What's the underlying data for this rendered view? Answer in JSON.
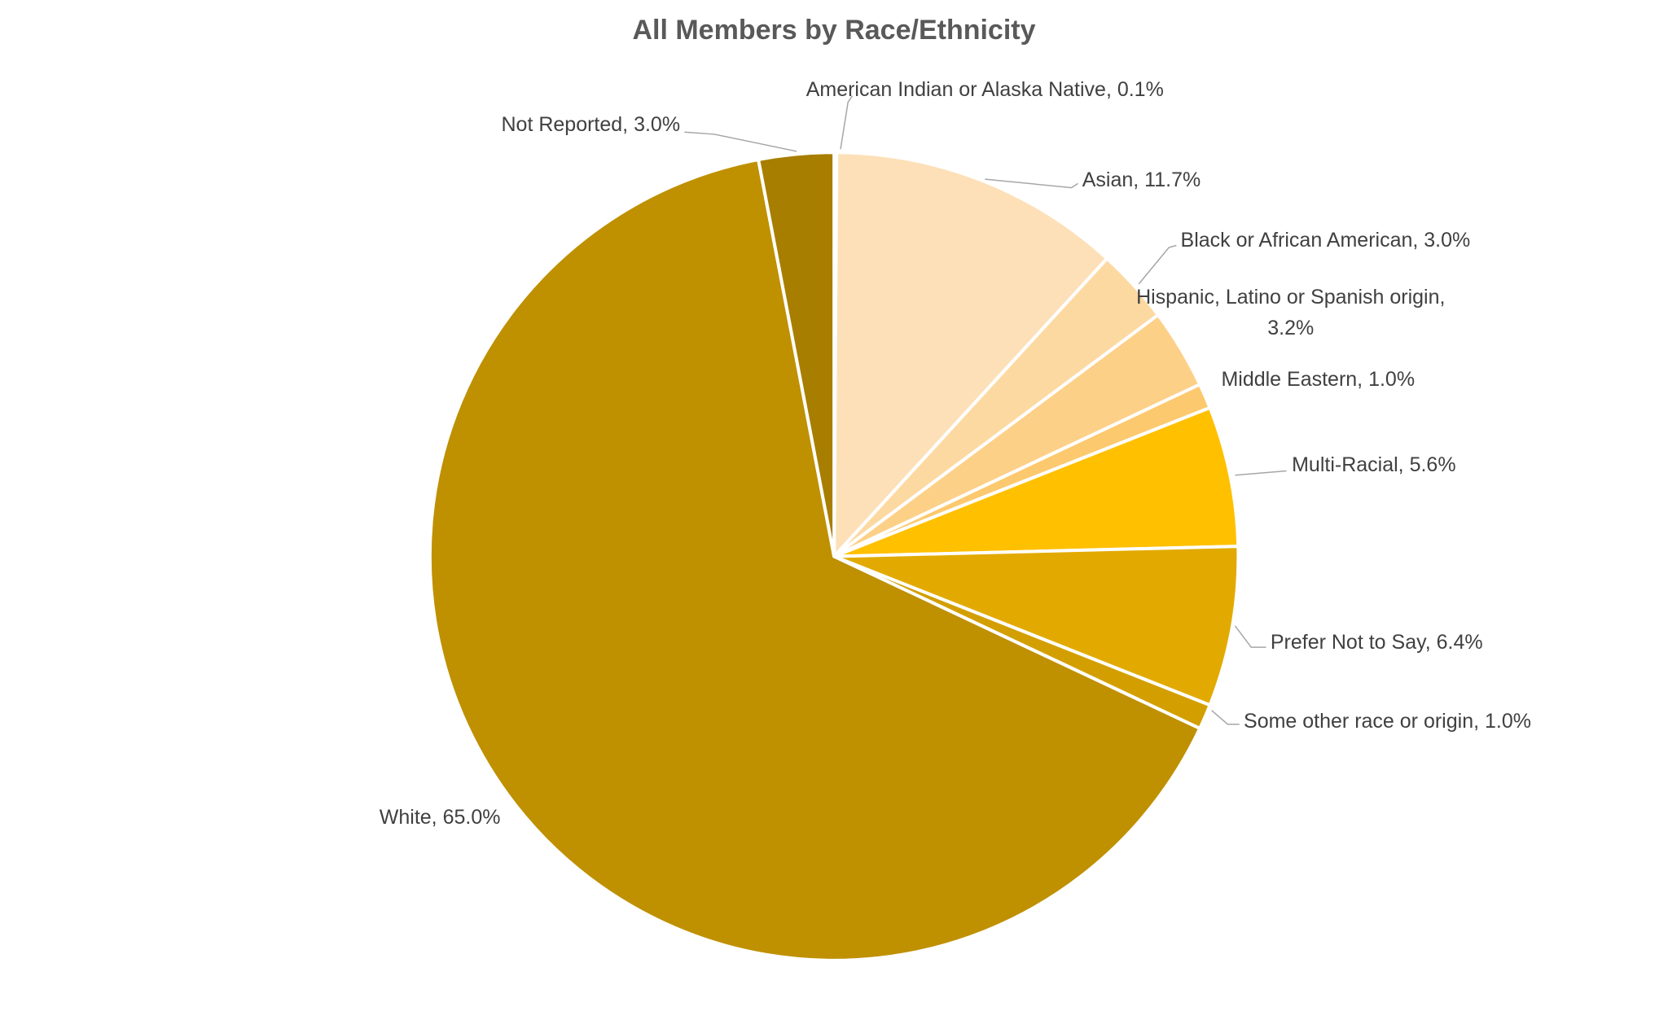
{
  "chart_data": {
    "type": "pie",
    "title": "All Members by Race/Ethnicity",
    "values": [
      0.1,
      11.7,
      3.0,
      3.2,
      1.0,
      5.6,
      6.4,
      1.0,
      65.0,
      3.0
    ],
    "value_labels": [
      "American Indian or Alaska Native, 0.1%",
      "Asian, 11.7%",
      "Black or African American, 3.0%",
      "Hispanic, Latino or Spanish origin, 3.2%",
      "Middle Eastern, 1.0%",
      "Multi-Racial, 5.6%",
      "Prefer Not to Say, 6.4%",
      "Some other race or origin, 1.0%",
      "White, 65.0%",
      "Not Reported, 3.0%"
    ],
    "colors": [
      "#fde6c4",
      "#fde0b8",
      "#fdd9a2",
      "#fdd088",
      "#fcc96e",
      "#ffc000",
      "#e2aa00",
      "#d39f00",
      "#bf9000",
      "#a87e00"
    ]
  }
}
